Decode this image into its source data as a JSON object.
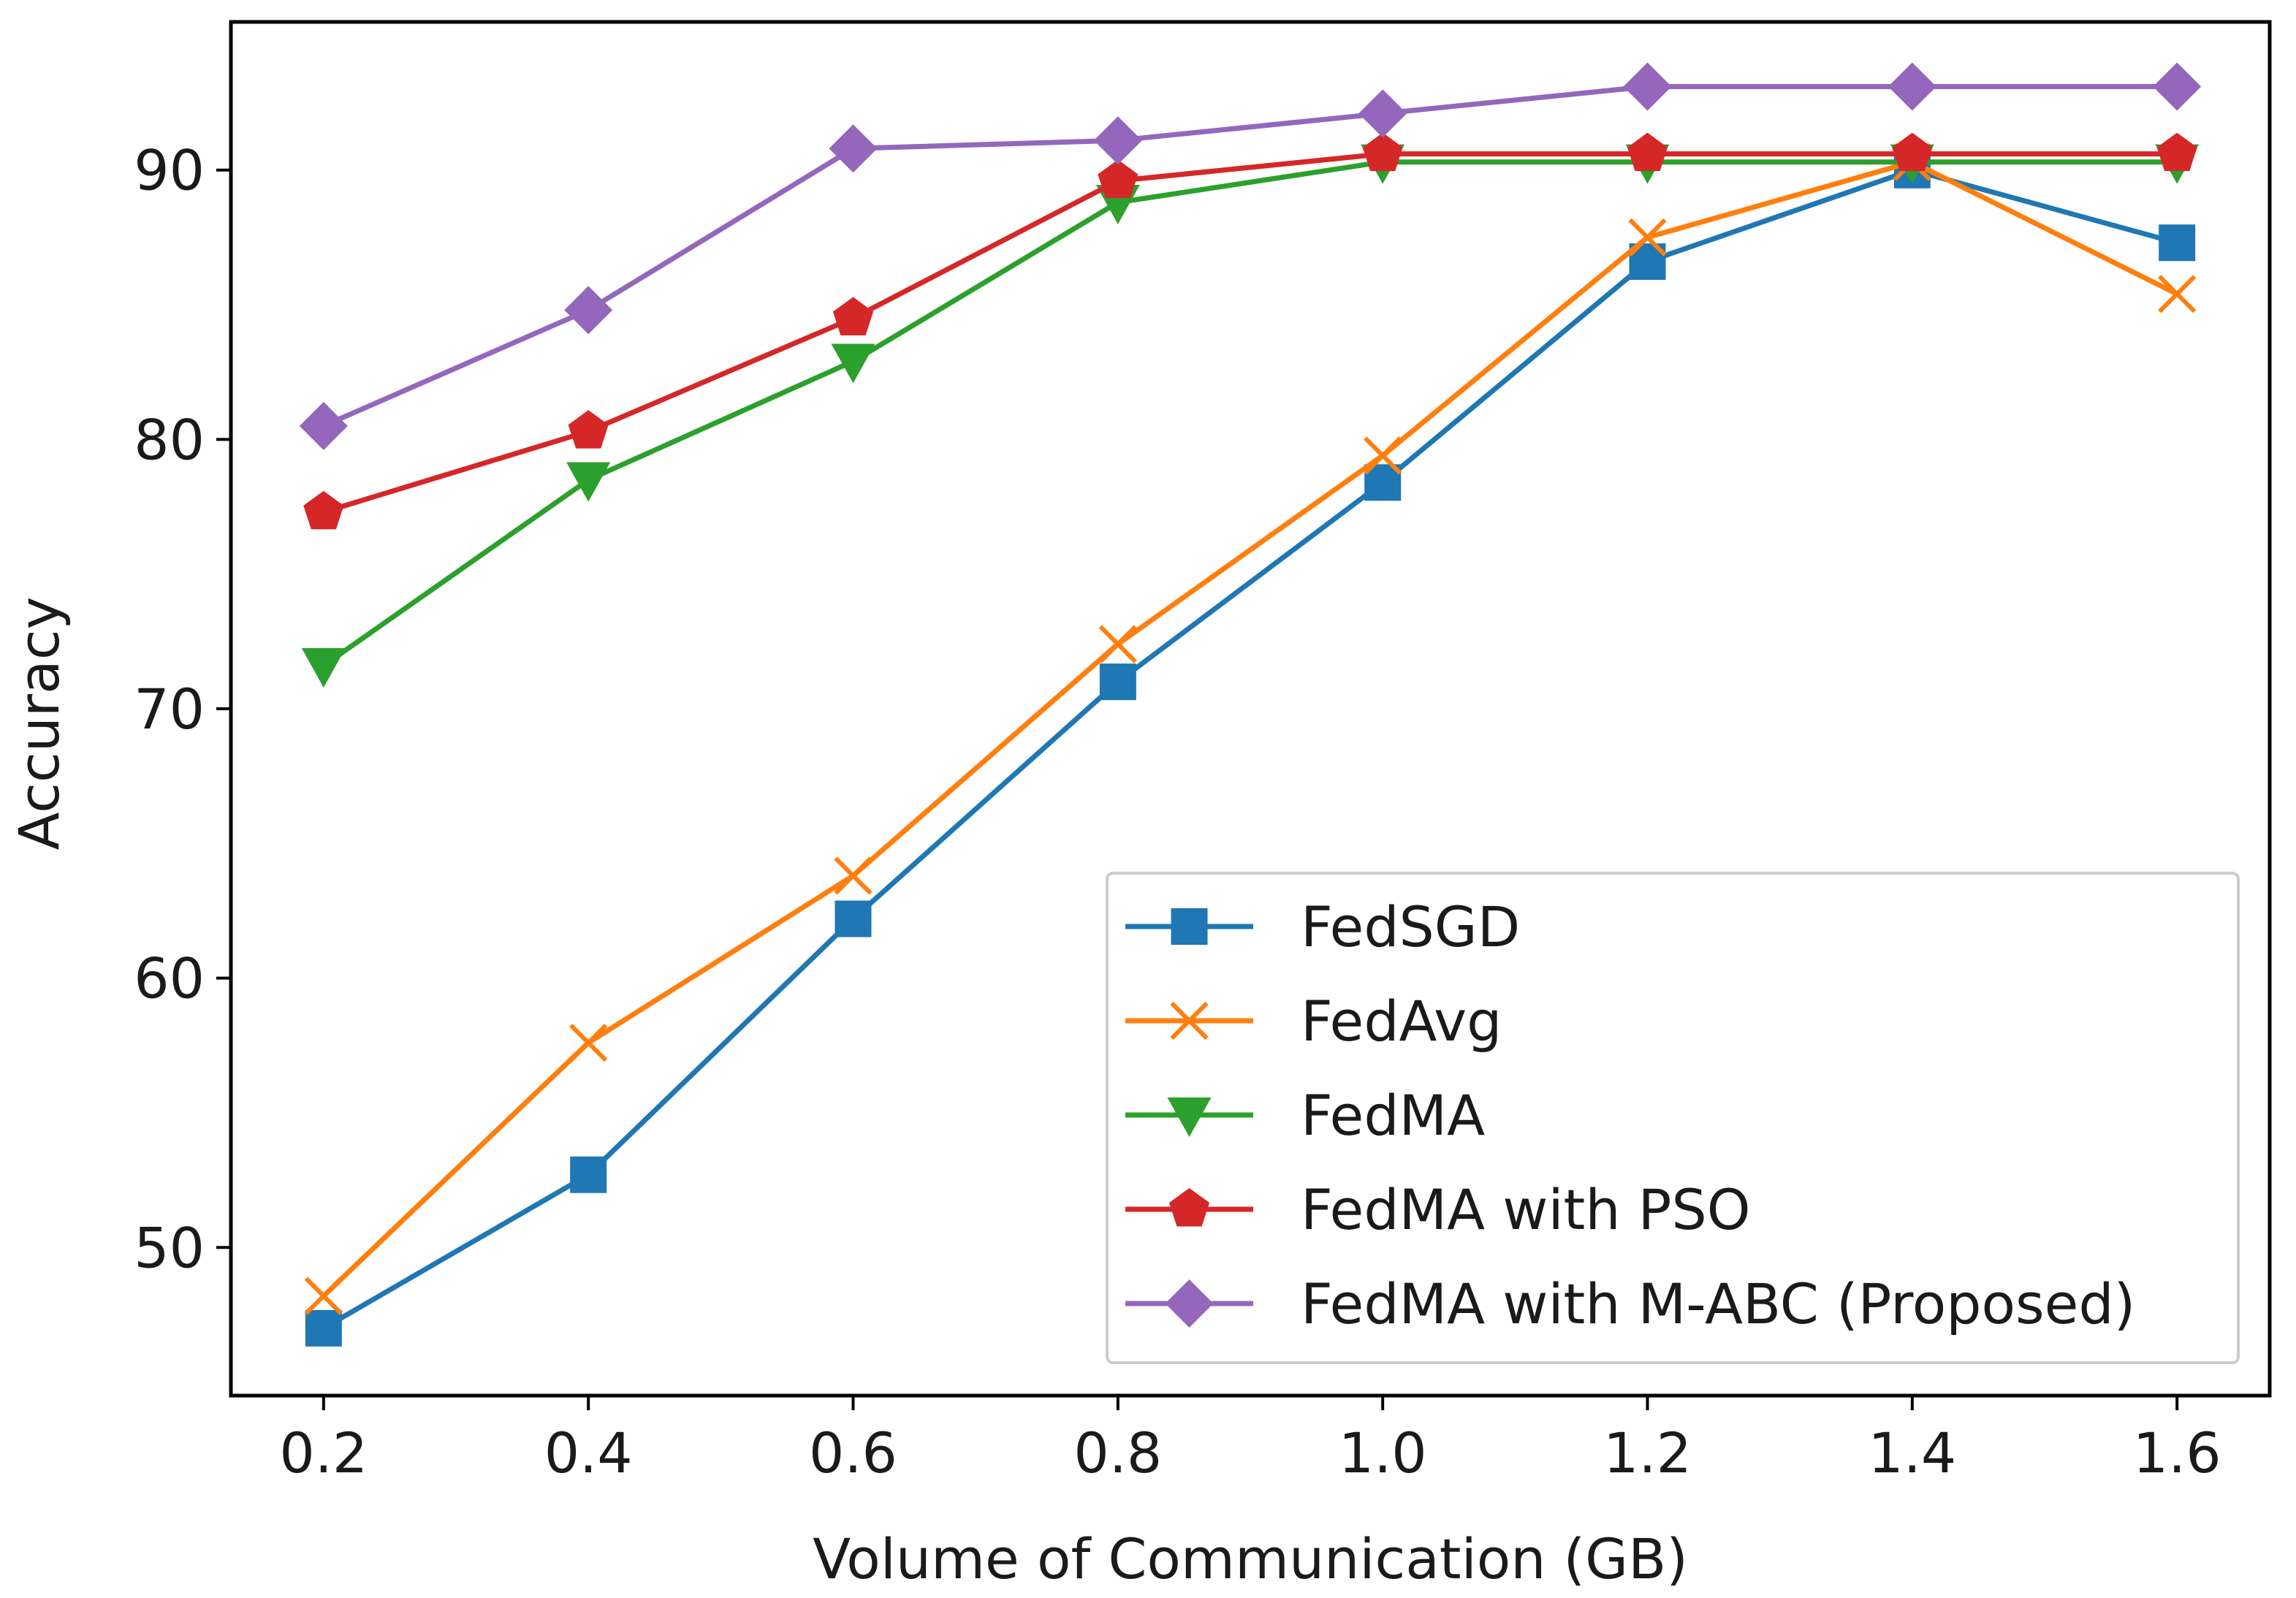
{
  "chart_data": {
    "type": "line",
    "title": "",
    "xlabel": "Volume of Communication (GB)",
    "ylabel": "Accuracy",
    "x": [
      0.2,
      0.4,
      0.6,
      0.8,
      1.0,
      1.2,
      1.4,
      1.6
    ],
    "x_tick_labels": [
      "0.2",
      "0.4",
      "0.6",
      "0.8",
      "1.0",
      "1.2",
      "1.4",
      "1.6"
    ],
    "xlim": [
      0.13,
      1.67
    ],
    "y_ticks": [
      50,
      60,
      70,
      80,
      90
    ],
    "ylim": [
      44.5,
      95.5
    ],
    "grid": false,
    "legend_position": "lower-right",
    "series": [
      {
        "name": "FedSGD",
        "color": "#1f77b4",
        "marker": "square",
        "values": [
          47.0,
          52.7,
          62.2,
          71.0,
          78.4,
          86.6,
          90.0,
          87.3
        ]
      },
      {
        "name": "FedAvg",
        "color": "#ff7f0e",
        "marker": "x",
        "values": [
          48.2,
          57.6,
          63.8,
          72.4,
          79.4,
          87.5,
          90.3,
          85.4
        ]
      },
      {
        "name": "FedMA",
        "color": "#2ca02c",
        "marker": "triangle-down",
        "values": [
          71.6,
          78.5,
          82.9,
          88.8,
          90.3,
          90.3,
          90.3,
          90.3
        ]
      },
      {
        "name": "FedMA with PSO",
        "color": "#d62728",
        "marker": "pentagon",
        "values": [
          77.3,
          80.3,
          84.5,
          89.6,
          90.6,
          90.6,
          90.6,
          90.6
        ]
      },
      {
        "name": "FedMA with M-ABC (Proposed)",
        "color": "#9467bd",
        "marker": "diamond",
        "values": [
          80.5,
          84.8,
          90.8,
          91.1,
          92.1,
          93.1,
          93.1,
          93.1
        ]
      }
    ]
  }
}
